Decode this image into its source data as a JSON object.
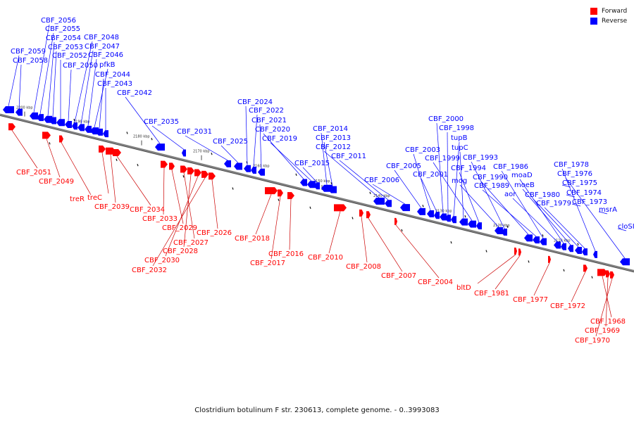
{
  "caption": "Clostridium botulinum F str. 230613, complete genome. - 0..3993083",
  "legend": [
    {
      "label": "Forward",
      "color": "#ff0000"
    },
    {
      "label": "Reverse",
      "color": "#0000ff"
    }
  ],
  "colors": {
    "forward": "#ff0000",
    "reverse": "#0000ff",
    "axis": "#7f7f7f",
    "leader": "#0000ff",
    "leader_forward": "#cc0000"
  },
  "ticks": [
    "2200 kbp",
    "2190 kbp",
    "2180 kbp",
    "2170 kbp",
    "2160 kbp",
    "2150 kbp",
    "2140 kbp",
    "2130 kbp",
    "2120 kbp",
    "2110 kbp"
  ],
  "reverse_genes": [
    "CBF_2059",
    "CBF_2058",
    "CBF_2056",
    "CBF_2055",
    "CBF_2054",
    "CBF_2053",
    "CBF_2052",
    "CBF_2050",
    "CBF_2048",
    "CBF_2047",
    "CBF_2046",
    "pfkB",
    "CBF_2044",
    "CBF_2043",
    "CBF_2042",
    "CBF_2035",
    "CBF_2031",
    "CBF_2025",
    "CBF_2024",
    "CBF_2022",
    "CBF_2021",
    "CBF_2020",
    "CBF_2019",
    "CBF_2015",
    "CBF_2014",
    "CBF_2013",
    "CBF_2012",
    "CBF_2011",
    "CBF_2006",
    "CBF_2005",
    "CBF_2003",
    "CBF_2001",
    "CBF_2000",
    "CBF_1998",
    "tupB",
    "tupC",
    "CBF_1999",
    "CBF_1994",
    "mog",
    "CBF_1993",
    "CBF_1990",
    "CBF_1989",
    "CBF_1986",
    "aor",
    "moaD",
    "moeB",
    "CBF_1980",
    "CBF_1979",
    "CBF_1978",
    "CBF_1976",
    "CBF_1975",
    "CBF_1974",
    "CBF_1973",
    "msrA",
    "cloSI"
  ],
  "forward_genes": [
    "CBF_2051",
    "CBF_2049",
    "treR",
    "treC",
    "CBF_2039",
    "CBF_2034",
    "CBF_2033",
    "CBF_2029",
    "CBF_2027",
    "CBF_2028",
    "CBF_2030",
    "CBF_2032",
    "CBF_2026",
    "CBF_2018",
    "CBF_2017",
    "CBF_2016",
    "CBF_2010",
    "CBF_2008",
    "CBF_2007",
    "CBF_2004",
    "bltD",
    "CBF_1981",
    "CBF_1977",
    "CBF_1972",
    "CBF_1968",
    "CBF_1969",
    "CBF_1970"
  ]
}
